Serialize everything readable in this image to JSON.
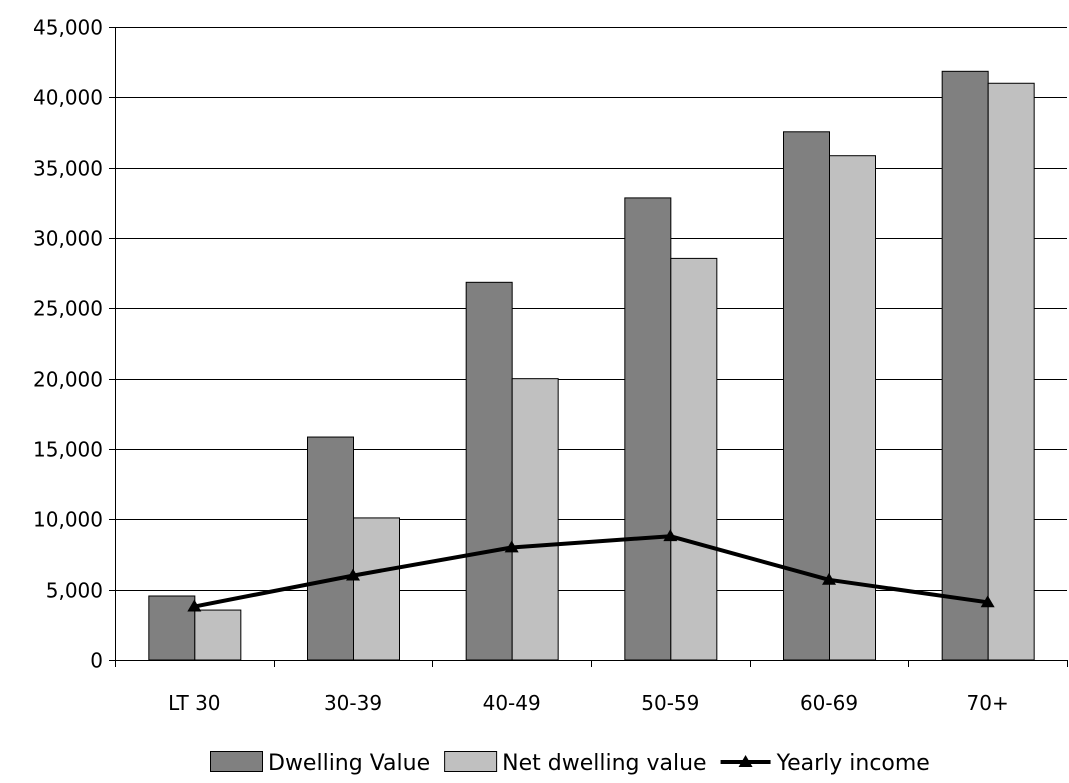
{
  "chart_data": {
    "type": "bar",
    "categories": [
      "LT 30",
      "30-39",
      "40-49",
      "50-59",
      "60-69",
      "70+"
    ],
    "series": [
      {
        "name": "Dwelling Value",
        "kind": "bar",
        "color": "#808080",
        "values": [
          4550,
          15850,
          26850,
          32850,
          37550,
          41850
        ]
      },
      {
        "name": "Net dwelling value",
        "kind": "bar",
        "color": "#c0c0c0",
        "values": [
          3550,
          10100,
          20000,
          28550,
          35850,
          41000
        ]
      },
      {
        "name": "Yearly income",
        "kind": "line",
        "color": "#000000",
        "marker": "triangle",
        "values": [
          3800,
          6000,
          8000,
          8800,
          5700,
          4100
        ]
      }
    ],
    "ylim": [
      0,
      45000
    ],
    "y_ticks": [
      "0",
      "5,000",
      "10,000",
      "15,000",
      "20,000",
      "25,000",
      "30,000",
      "35,000",
      "40,000",
      "45,000"
    ],
    "grid": true,
    "legend_position": "bottom",
    "title": "",
    "xlabel": "",
    "ylabel": ""
  }
}
